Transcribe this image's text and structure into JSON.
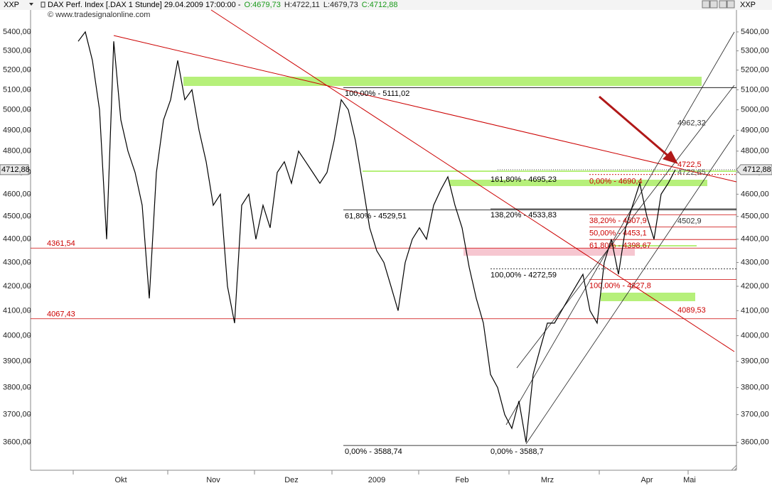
{
  "chart_data": {
    "type": "line",
    "symbol": "XXP",
    "title": "DAX Perf. Index [.DAX 1 Stunde] 29.04.2009 17:00:00 -",
    "quote": [
      {
        "value": 4679.73,
        "label": "O:4679,73",
        "color": "#1a9a1a"
      },
      {
        "value": 4722.11,
        "label": "H:4722,11",
        "color": "#222222"
      },
      {
        "value": 4679.73,
        "label": "L:4679,73",
        "color": "#222222"
      },
      {
        "value": 4712.88,
        "label": "C:4712,88",
        "color": "#1a9a1a"
      }
    ],
    "copyright": "© www.tradesignalonline.com",
    "last": {
      "value": 4712.88,
      "label": "4712,88"
    },
    "log_scale": true,
    "color": "#000000",
    "ylim": [
      3502,
      5534
    ],
    "yticks": [
      {
        "value": 5400,
        "label": "5400,00"
      },
      {
        "value": 5300,
        "label": "5300,00"
      },
      {
        "value": 5200,
        "label": "5200,00"
      },
      {
        "value": 5100,
        "label": "5100,00"
      },
      {
        "value": 5000,
        "label": "5000,00"
      },
      {
        "value": 4900,
        "label": "4900,00"
      },
      {
        "value": 4800,
        "label": "4800,00"
      },
      {
        "value": 4700,
        "label": "4700,00"
      },
      {
        "value": 4600,
        "label": "4600,00"
      },
      {
        "value": 4500,
        "label": "4500,00"
      },
      {
        "value": 4400,
        "label": "4400,00"
      },
      {
        "value": 4300,
        "label": "4300,00"
      },
      {
        "value": 4200,
        "label": "4200,00"
      },
      {
        "value": 4100,
        "label": "4100,00"
      },
      {
        "value": 4000,
        "label": "4000,00"
      },
      {
        "value": 3900,
        "label": "3900,00"
      },
      {
        "value": 3800,
        "label": "3800,00"
      },
      {
        "value": 3700,
        "label": "3700,00"
      },
      {
        "value": 3600,
        "label": "3600,00"
      }
    ],
    "categories": [
      null,
      null,
      null,
      null,
      null,
      null,
      "Okt",
      null,
      null,
      null,
      null,
      null,
      null,
      null,
      null,
      null,
      null,
      null,
      null,
      "Nov",
      null,
      null,
      null,
      null,
      null,
      null,
      null,
      null,
      null,
      null,
      "Dez",
      null,
      null,
      null,
      null,
      null,
      null,
      null,
      null,
      null,
      null,
      null,
      "2009",
      null,
      null,
      null,
      null,
      null,
      null,
      null,
      null,
      null,
      null,
      null,
      "Feb",
      null,
      null,
      null,
      null,
      null,
      null,
      null,
      null,
      null,
      null,
      null,
      "Mrz",
      null,
      null,
      null,
      null,
      null,
      null,
      null,
      null,
      null,
      null,
      null,
      null,
      null,
      "Apr",
      null,
      null,
      null,
      null,
      null,
      "Mai"
    ],
    "values": [
      5350,
      5400,
      5250,
      5000,
      4400,
      5350,
      4950,
      4800,
      4700,
      4550,
      4150,
      4700,
      4950,
      5050,
      5250,
      5050,
      5100,
      4900,
      4750,
      4550,
      4600,
      4200,
      4050,
      4550,
      4600,
      4400,
      4550,
      4450,
      4700,
      4750,
      4650,
      4800,
      4750,
      4700,
      4650,
      4700,
      4850,
      5050,
      5000,
      4850,
      4650,
      4450,
      4350,
      4300,
      4200,
      4100,
      4300,
      4400,
      4450,
      4400,
      4550,
      4620,
      4680,
      4550,
      4450,
      4280,
      4150,
      4050,
      3850,
      3800,
      3700,
      3650,
      3750,
      3600,
      3850,
      3950,
      4050,
      4050,
      4100,
      4150,
      4200,
      4250,
      4100,
      4050,
      4300,
      4400,
      4250,
      4450,
      4550,
      4650,
      4500,
      4400,
      4600,
      4650,
      4712.88,
      null,
      null
    ],
    "annotations": [
      {
        "value": 4361.54,
        "label": "4361,54",
        "color": "#cc0000"
      },
      {
        "value": 4067.43,
        "label": "4067,43",
        "color": "#cc0000"
      },
      {
        "value": 5111.02,
        "label": "100,00% - 5111,02",
        "color": "#000000"
      },
      {
        "value": 4529.51,
        "label": "61,80% - 4529,51",
        "color": "#000000"
      },
      {
        "value": 3588.74,
        "label": "0,00% - 3588,74",
        "color": "#000000"
      },
      {
        "value": 4695.23,
        "label": "161,80% - 4695,23",
        "color": "#000000"
      },
      {
        "value": 4533.83,
        "label": "138,20% - 4533,83",
        "color": "#000000"
      },
      {
        "value": 4272.59,
        "label": "100,00% - 4272,59",
        "color": "#000000"
      },
      {
        "value": 3588.7,
        "label": "0,00% - 3588,7",
        "color": "#000000"
      },
      {
        "value": 4690.4,
        "label": "0,00% - 4690,4",
        "color": "#cc0000"
      },
      {
        "value": 4507.9,
        "label": "38,20% - 4507,9",
        "color": "#cc0000"
      },
      {
        "value": 4453.1,
        "label": "50,00% - 4453,1",
        "color": "#cc0000"
      },
      {
        "value": 4398.67,
        "label": "61,80% - 4398,67",
        "color": "#cc0000"
      },
      {
        "value": 4227.8,
        "label": "100,00% - 4227,8",
        "color": "#cc0000"
      },
      {
        "value": 4962.32,
        "label": "4962,32",
        "color": "#333333"
      },
      {
        "value": 4722.5,
        "label": "4722,5",
        "color": "#cc0000"
      },
      {
        "value": 4722.65,
        "label": "4722,65",
        "color": "#555555"
      },
      {
        "value": 4502.9,
        "label": "4502,9",
        "color": "#333333"
      },
      {
        "value": 4089.53,
        "label": "4089,53",
        "color": "#cc0000"
      }
    ]
  }
}
